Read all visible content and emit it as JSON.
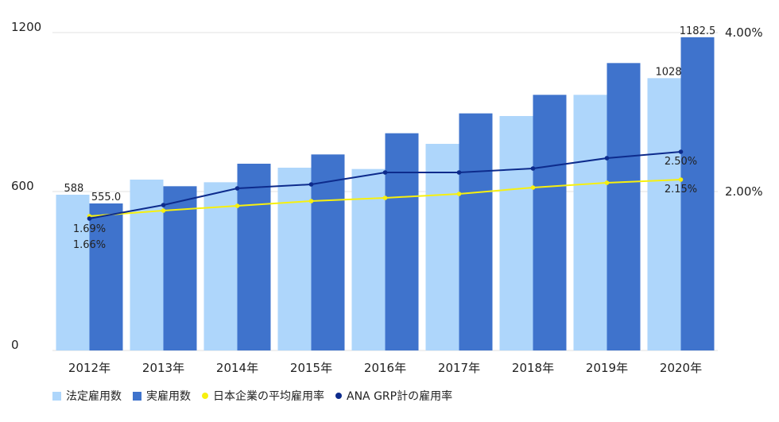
{
  "chart_data": {
    "type": "bar+line",
    "categories": [
      "2012年",
      "2013年",
      "2014年",
      "2015年",
      "2016年",
      "2017年",
      "2018年",
      "2019年",
      "2020年"
    ],
    "y_left": {
      "ticks": [
        "0",
        "600",
        "1200"
      ],
      "range": [
        0,
        1200
      ]
    },
    "y_right": {
      "ticks": [
        "2.00%",
        "4.00%"
      ],
      "range": [
        0,
        4
      ]
    },
    "series": [
      {
        "name": "法定雇用数",
        "kind": "bar",
        "axis": "left",
        "color": "#aed6fb",
        "values": [
          588,
          645,
          635,
          690,
          685,
          780,
          885,
          965,
          1028
        ],
        "labels": [
          "588",
          "",
          "",
          "",
          "",
          "",
          "",
          "",
          "1028"
        ]
      },
      {
        "name": "実雇用数",
        "kind": "bar",
        "axis": "left",
        "color": "#3f73cc",
        "values": [
          555,
          620,
          705,
          740,
          820,
          895,
          965,
          1085,
          1182.5
        ],
        "labels": [
          "555.0",
          "",
          "",
          "",
          "",
          "",
          "",
          "",
          "1182.5"
        ]
      },
      {
        "name": "日本企業の平均雇用率",
        "kind": "line",
        "axis": "right",
        "color": "#f7f00e",
        "values": [
          1.69,
          1.76,
          1.82,
          1.88,
          1.92,
          1.97,
          2.05,
          2.11,
          2.15
        ],
        "labels": [
          "1.69%",
          "",
          "",
          "",
          "",
          "",
          "",
          "",
          "2.15%"
        ]
      },
      {
        "name": "ANA GRP計の雇用率",
        "kind": "line",
        "axis": "right",
        "color": "#0d2b8c",
        "values": [
          1.66,
          1.83,
          2.04,
          2.09,
          2.24,
          2.24,
          2.29,
          2.42,
          2.5
        ],
        "labels": [
          "1.66%",
          "",
          "",
          "",
          "",
          "",
          "",
          "",
          "2.50%"
        ]
      }
    ],
    "legend": "bottom-left"
  }
}
